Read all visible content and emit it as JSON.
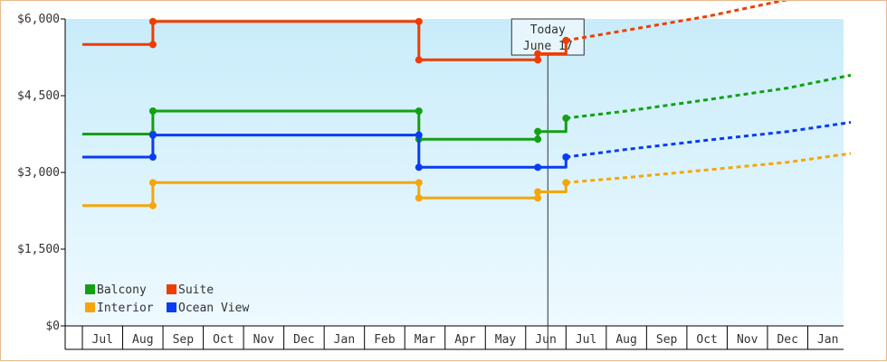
{
  "chart_data": {
    "type": "line",
    "step": true,
    "title": "",
    "xlabel": "",
    "ylabel": "",
    "ylim": [
      0,
      6000
    ],
    "yticks": [
      0,
      1500,
      3000,
      4500,
      6000
    ],
    "ytick_labels": [
      "$0",
      "$1,500",
      "$3,000",
      "$4,500",
      "$6,000"
    ],
    "xticks": [
      "Jul",
      "Aug",
      "Sep",
      "Oct",
      "Nov",
      "Dec",
      "Jan",
      "Feb",
      "Mar",
      "Apr",
      "May",
      "Jun",
      "Jul",
      "Aug",
      "Sep",
      "Oct",
      "Nov",
      "Dec",
      "Jan"
    ],
    "xrange": [
      0,
      19
    ],
    "grid": false,
    "legend_placement": "bottom-left",
    "today": {
      "line1": "Today",
      "line2": "June 17",
      "x": 11.55
    },
    "series": [
      {
        "name": "Balcony",
        "color": "#13a013",
        "points": [
          [
            0,
            3750
          ],
          [
            1.75,
            3750
          ],
          [
            1.75,
            4200
          ],
          [
            8.35,
            4200
          ],
          [
            8.35,
            3650
          ],
          [
            11.3,
            3650
          ],
          [
            11.3,
            3800
          ],
          [
            12.0,
            3800
          ],
          [
            12.0,
            4060
          ]
        ],
        "markers": [
          [
            1.75,
            3750
          ],
          [
            1.75,
            4200
          ],
          [
            8.35,
            4200
          ],
          [
            8.35,
            3650
          ],
          [
            11.3,
            3650
          ],
          [
            11.3,
            3800
          ],
          [
            12.0,
            4060
          ]
        ],
        "projection": [
          [
            12.0,
            4060
          ],
          [
            13.5,
            4200
          ],
          [
            15.5,
            4420
          ],
          [
            17.5,
            4650
          ],
          [
            19.5,
            4900
          ]
        ]
      },
      {
        "name": "Suite",
        "color": "#f03c00",
        "points": [
          [
            0,
            5500
          ],
          [
            1.75,
            5500
          ],
          [
            1.75,
            5950
          ],
          [
            8.35,
            5950
          ],
          [
            8.35,
            5200
          ],
          [
            11.3,
            5200
          ],
          [
            11.3,
            5320
          ],
          [
            12.0,
            5320
          ],
          [
            12.0,
            5580
          ]
        ],
        "markers": [
          [
            1.75,
            5500
          ],
          [
            1.75,
            5950
          ],
          [
            8.35,
            5950
          ],
          [
            8.35,
            5200
          ],
          [
            11.3,
            5200
          ],
          [
            11.3,
            5320
          ],
          [
            12.0,
            5580
          ]
        ],
        "projection": [
          [
            12.0,
            5580
          ],
          [
            13.5,
            5780
          ],
          [
            15.5,
            6050
          ],
          [
            17.5,
            6380
          ],
          [
            19.5,
            6700
          ]
        ]
      },
      {
        "name": "Interior",
        "color": "#f5a60a",
        "points": [
          [
            0,
            2350
          ],
          [
            1.75,
            2350
          ],
          [
            1.75,
            2800
          ],
          [
            8.35,
            2800
          ],
          [
            8.35,
            2500
          ],
          [
            11.3,
            2500
          ],
          [
            11.3,
            2620
          ],
          [
            12.0,
            2620
          ],
          [
            12.0,
            2800
          ]
        ],
        "markers": [
          [
            1.75,
            2350
          ],
          [
            1.75,
            2800
          ],
          [
            8.35,
            2800
          ],
          [
            8.35,
            2500
          ],
          [
            11.3,
            2500
          ],
          [
            11.3,
            2620
          ],
          [
            12.0,
            2800
          ]
        ],
        "projection": [
          [
            12.0,
            2800
          ],
          [
            13.5,
            2900
          ],
          [
            15.5,
            3050
          ],
          [
            17.5,
            3200
          ],
          [
            19.5,
            3370
          ]
        ]
      },
      {
        "name": "Ocean View",
        "color": "#0a3cf5",
        "points": [
          [
            0,
            3300
          ],
          [
            1.75,
            3300
          ],
          [
            1.75,
            3730
          ],
          [
            8.35,
            3730
          ],
          [
            8.35,
            3100
          ],
          [
            11.3,
            3100
          ],
          [
            12.0,
            3100
          ],
          [
            12.0,
            3300
          ]
        ],
        "markers": [
          [
            1.75,
            3300
          ],
          [
            1.75,
            3730
          ],
          [
            8.35,
            3730
          ],
          [
            8.35,
            3100
          ],
          [
            11.3,
            3100
          ],
          [
            12.0,
            3300
          ]
        ],
        "projection": [
          [
            12.0,
            3300
          ],
          [
            13.5,
            3450
          ],
          [
            15.5,
            3630
          ],
          [
            17.5,
            3800
          ],
          [
            19.5,
            3980
          ]
        ]
      }
    ]
  }
}
